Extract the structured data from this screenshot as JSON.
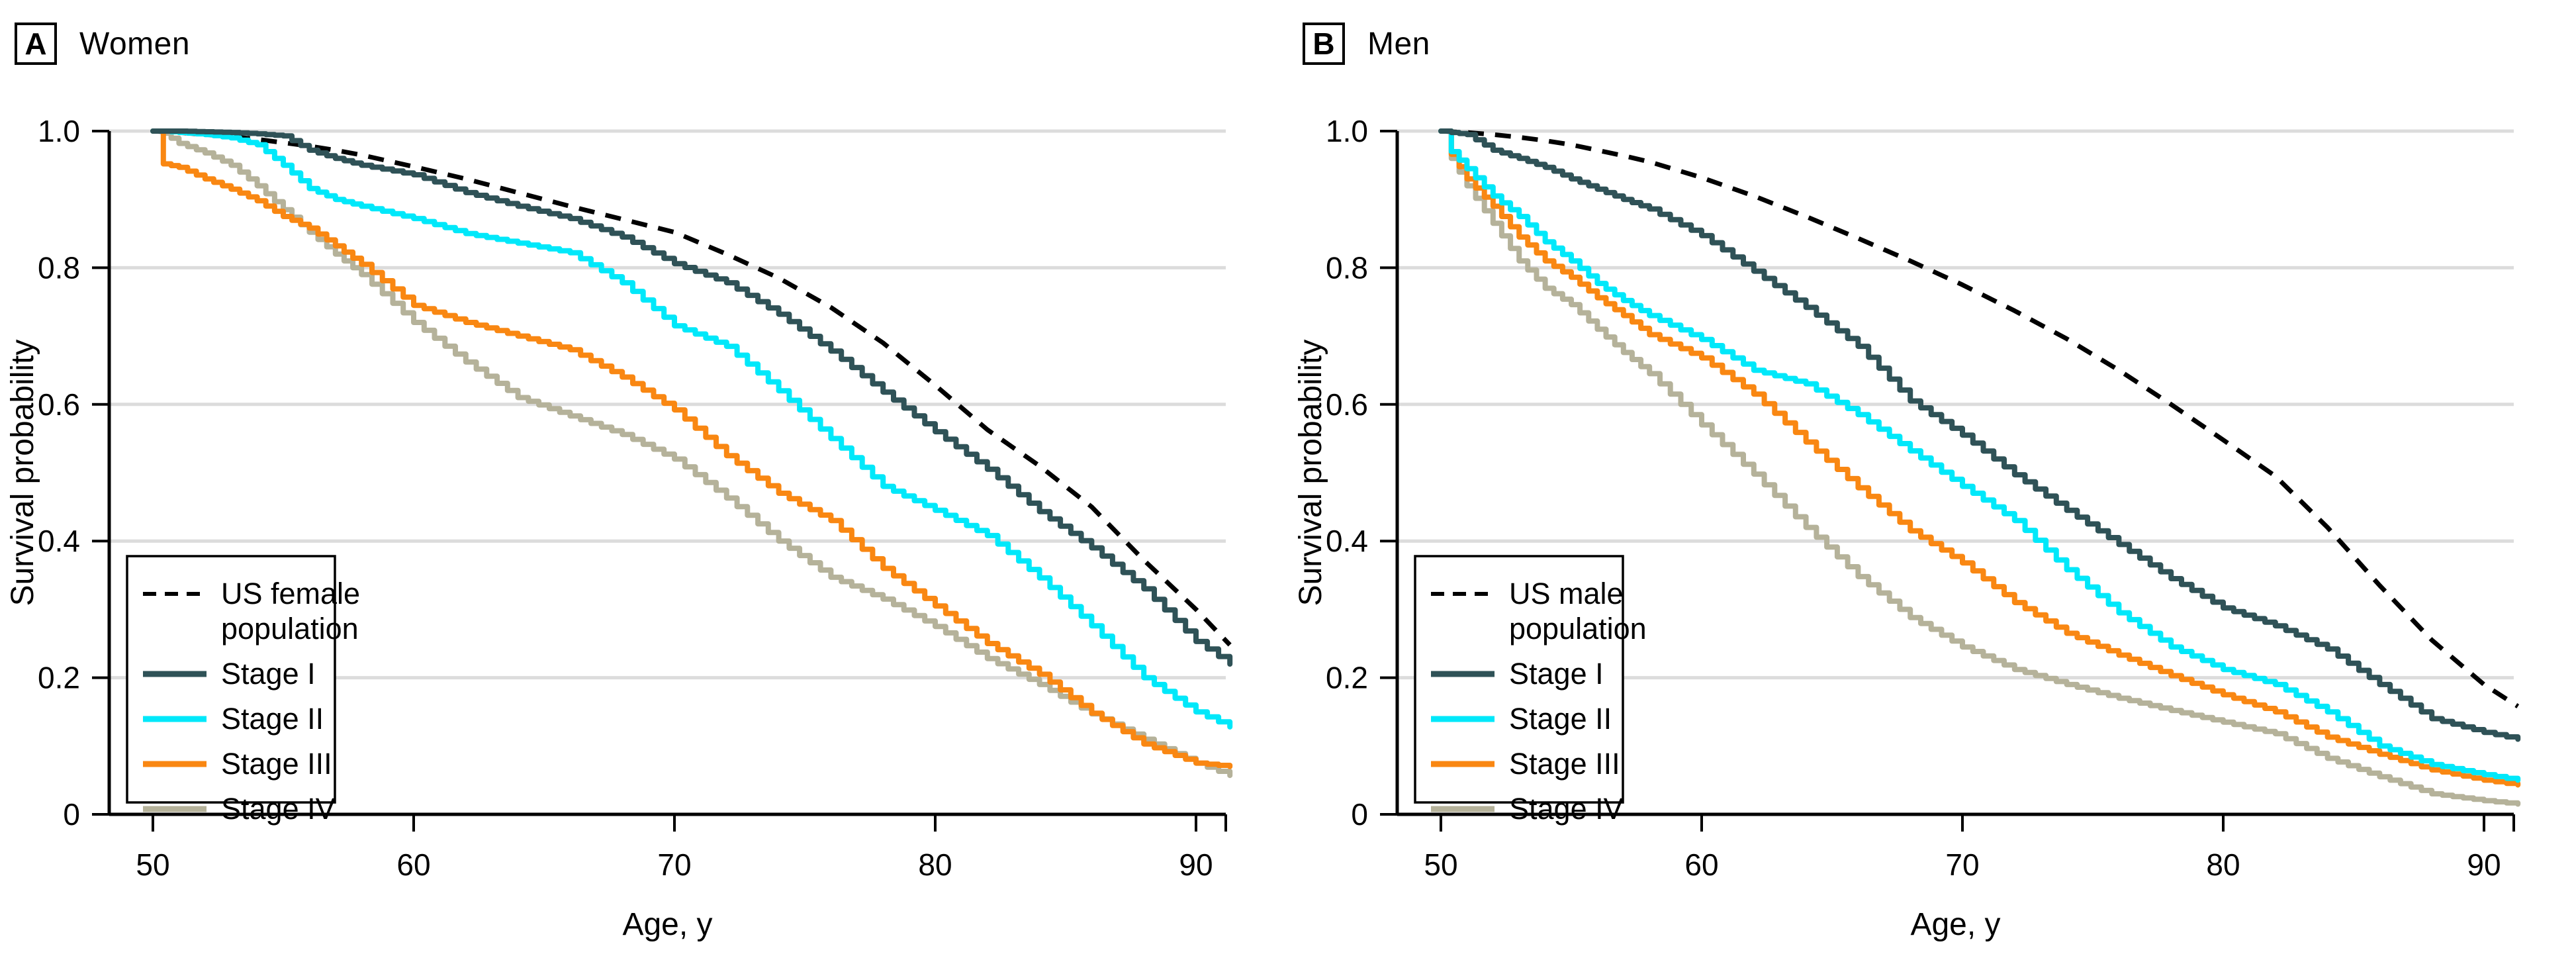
{
  "page": {
    "background": "#FFFFFF"
  },
  "panels": [
    {
      "tag": "A",
      "title": "Women"
    },
    {
      "tag": "B",
      "title": "Men"
    }
  ],
  "colors": {
    "us_population": "#000000",
    "stage_i": "#2F5257",
    "stage_ii": "#00E8FA",
    "stage_iii": "#F98712",
    "stage_iv": "#B5B29A",
    "gridline": "#DCDCDC",
    "axis": "#000000"
  },
  "chart_data": [
    {
      "type": "line",
      "title": "Women",
      "xlabel": "Age, y",
      "ylabel": "Survival probability",
      "xlim": [
        48.3,
        91.8
      ],
      "ylim": [
        0,
        1
      ],
      "xticks": [
        "50",
        "60",
        "70",
        "80",
        "90"
      ],
      "yticks": [
        {
          "v": 1.0,
          "label": "1.0"
        },
        {
          "v": 0.8,
          "label": "0.8"
        },
        {
          "v": 0.6,
          "label": "0.6"
        },
        {
          "v": 0.4,
          "label": "0.4"
        },
        {
          "v": 0.2,
          "label": "0.2"
        },
        {
          "v": 0.0,
          "label": "0"
        }
      ],
      "grid": "horizontal",
      "legend_position": "lower-left",
      "x_ages": [
        50,
        50.4,
        51,
        52,
        53,
        54,
        55,
        56,
        57,
        58,
        60,
        62,
        64,
        66,
        68,
        70,
        72,
        74,
        76,
        78,
        80,
        82,
        84,
        86,
        88,
        90,
        91.3
      ],
      "series": [
        {
          "name": "US female population",
          "legend_lines": [
            "US female",
            "population"
          ],
          "color": "#000000",
          "dashed": true,
          "km": false,
          "values": [
            1.0,
            0.999,
            0.998,
            0.995,
            0.992,
            0.988,
            0.983,
            0.978,
            0.972,
            0.965,
            0.948,
            0.93,
            0.91,
            0.89,
            0.871,
            0.852,
            0.82,
            0.785,
            0.742,
            0.69,
            0.628,
            0.563,
            0.51,
            0.45,
            0.372,
            0.3,
            0.248
          ]
        },
        {
          "name": "Stage I",
          "legend_lines": [
            "Stage I"
          ],
          "color": "#2F5257",
          "dashed": false,
          "km": true,
          "values": [
            1.0,
            1.0,
            1.0,
            0.999,
            0.998,
            0.996,
            0.993,
            0.972,
            0.96,
            0.95,
            0.936,
            0.91,
            0.89,
            0.872,
            0.845,
            0.806,
            0.778,
            0.732,
            0.678,
            0.618,
            0.56,
            0.505,
            0.443,
            0.39,
            0.33,
            0.253,
            0.22
          ]
        },
        {
          "name": "Stage II",
          "legend_lines": [
            "Stage II"
          ],
          "color": "#00E8FA",
          "dashed": false,
          "km": true,
          "values": [
            1.0,
            1.0,
            0.998,
            0.995,
            0.99,
            0.98,
            0.95,
            0.916,
            0.9,
            0.89,
            0.872,
            0.85,
            0.836,
            0.822,
            0.778,
            0.715,
            0.685,
            0.62,
            0.55,
            0.48,
            0.445,
            0.408,
            0.346,
            0.276,
            0.2,
            0.15,
            0.128
          ]
        },
        {
          "name": "Stage III",
          "legend_lines": [
            "Stage III"
          ],
          "color": "#F98712",
          "dashed": false,
          "km": true,
          "values": [
            1.0,
            0.952,
            0.947,
            0.93,
            0.915,
            0.898,
            0.875,
            0.858,
            0.832,
            0.805,
            0.745,
            0.72,
            0.7,
            0.68,
            0.64,
            0.592,
            0.525,
            0.47,
            0.43,
            0.36,
            0.305,
            0.25,
            0.205,
            0.148,
            0.103,
            0.075,
            0.07
          ]
        },
        {
          "name": "Stage IV",
          "legend_lines": [
            "Stage IV"
          ],
          "color": "#B5B29A",
          "dashed": false,
          "km": true,
          "values": [
            1.0,
            0.997,
            0.982,
            0.968,
            0.95,
            0.92,
            0.885,
            0.852,
            0.82,
            0.79,
            0.72,
            0.662,
            0.61,
            0.583,
            0.556,
            0.52,
            0.463,
            0.4,
            0.347,
            0.315,
            0.275,
            0.228,
            0.19,
            0.147,
            0.11,
            0.075,
            0.057
          ]
        }
      ]
    },
    {
      "type": "line",
      "title": "Men",
      "xlabel": "Age, y",
      "ylabel": "Survival probability",
      "xlim": [
        48.3,
        91.8
      ],
      "ylim": [
        0,
        1
      ],
      "xticks": [
        "50",
        "60",
        "70",
        "80",
        "90"
      ],
      "yticks": [
        {
          "v": 1.0,
          "label": "1.0"
        },
        {
          "v": 0.8,
          "label": "0.8"
        },
        {
          "v": 0.6,
          "label": "0.6"
        },
        {
          "v": 0.4,
          "label": "0.4"
        },
        {
          "v": 0.2,
          "label": "0.2"
        },
        {
          "v": 0.0,
          "label": "0"
        }
      ],
      "grid": "horizontal",
      "legend_position": "lower-left",
      "x_ages": [
        50,
        50.4,
        51,
        52,
        53,
        54,
        55,
        56,
        57,
        58,
        60,
        62,
        64,
        66,
        68,
        70,
        72,
        74,
        76,
        78,
        80,
        82,
        84,
        86,
        88,
        90,
        91.3
      ],
      "series": [
        {
          "name": "US male population",
          "legend_lines": [
            "US male",
            "population"
          ],
          "color": "#000000",
          "dashed": true,
          "km": false,
          "values": [
            1.0,
            0.999,
            0.998,
            0.995,
            0.991,
            0.986,
            0.98,
            0.972,
            0.964,
            0.955,
            0.932,
            0.905,
            0.875,
            0.843,
            0.81,
            0.775,
            0.737,
            0.696,
            0.65,
            0.6,
            0.548,
            0.495,
            0.42,
            0.335,
            0.255,
            0.19,
            0.158
          ]
        },
        {
          "name": "Stage I",
          "legend_lines": [
            "Stage I"
          ],
          "color": "#2F5257",
          "dashed": false,
          "km": true,
          "values": [
            1.0,
            0.998,
            0.995,
            0.972,
            0.96,
            0.947,
            0.93,
            0.915,
            0.9,
            0.886,
            0.847,
            0.795,
            0.742,
            0.685,
            0.605,
            0.555,
            0.497,
            0.445,
            0.395,
            0.345,
            0.302,
            0.276,
            0.242,
            0.19,
            0.14,
            0.12,
            0.11
          ]
        },
        {
          "name": "Stage II",
          "legend_lines": [
            "Stage II"
          ],
          "color": "#00E8FA",
          "dashed": false,
          "km": true,
          "values": [
            1.0,
            0.97,
            0.945,
            0.905,
            0.875,
            0.838,
            0.81,
            0.777,
            0.752,
            0.73,
            0.695,
            0.65,
            0.63,
            0.585,
            0.532,
            0.48,
            0.43,
            0.358,
            0.295,
            0.245,
            0.212,
            0.19,
            0.15,
            0.1,
            0.073,
            0.058,
            0.05
          ]
        },
        {
          "name": "Stage III",
          "legend_lines": [
            "Stage III"
          ],
          "color": "#F98712",
          "dashed": false,
          "km": true,
          "values": [
            1.0,
            0.966,
            0.93,
            0.89,
            0.845,
            0.81,
            0.786,
            0.756,
            0.73,
            0.702,
            0.668,
            0.615,
            0.545,
            0.478,
            0.415,
            0.368,
            0.31,
            0.265,
            0.233,
            0.203,
            0.175,
            0.15,
            0.113,
            0.088,
            0.065,
            0.05,
            0.043
          ]
        },
        {
          "name": "Stage IV",
          "legend_lines": [
            "Stage IV"
          ],
          "color": "#B5B29A",
          "dashed": false,
          "km": true,
          "values": [
            1.0,
            0.96,
            0.92,
            0.865,
            0.81,
            0.77,
            0.746,
            0.71,
            0.676,
            0.645,
            0.57,
            0.498,
            0.42,
            0.348,
            0.288,
            0.245,
            0.212,
            0.19,
            0.17,
            0.152,
            0.135,
            0.118,
            0.082,
            0.055,
            0.03,
            0.02,
            0.015
          ]
        }
      ]
    }
  ]
}
